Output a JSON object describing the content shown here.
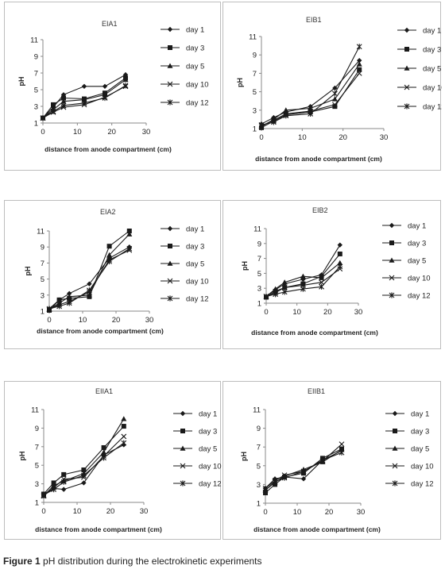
{
  "legend_labels": [
    "day 1",
    "day 3",
    "day 5",
    "day 10",
    "day 12"
  ],
  "chart_data": [
    {
      "type": "line",
      "title": "EIA1",
      "ylabel": "pH",
      "xlabel": "distance from  anode compartment (cm)",
      "xlim": [
        0,
        30
      ],
      "ylim": [
        1,
        11
      ],
      "xticks": [
        0,
        10,
        20,
        30
      ],
      "yticks": [
        1,
        3,
        5,
        7,
        9,
        11
      ],
      "x": [
        0,
        3,
        6,
        12,
        18,
        24
      ],
      "series": [
        {
          "name": "day 1",
          "values": [
            1.6,
            2.9,
            4.4,
            5.4,
            5.4,
            6.8
          ]
        },
        {
          "name": "day 3",
          "values": [
            1.6,
            3.2,
            4.0,
            3.9,
            4.6,
            6.4
          ]
        },
        {
          "name": "day 5",
          "values": [
            1.6,
            2.6,
            3.6,
            3.8,
            4.4,
            6.2
          ]
        },
        {
          "name": "day 10",
          "values": [
            1.6,
            2.3,
            2.9,
            3.2,
            4.1,
            5.4
          ]
        },
        {
          "name": "day 12",
          "values": [
            1.6,
            2.4,
            3.1,
            3.4,
            4.0,
            5.5
          ]
        }
      ]
    },
    {
      "type": "line",
      "title": "EIB1",
      "ylabel": "pH",
      "xlabel": "distance from  anode compartment (cm)",
      "xlim": [
        0,
        30
      ],
      "ylim": [
        1,
        11
      ],
      "xticks": [
        0,
        10,
        20,
        30
      ],
      "yticks": [
        1,
        3,
        5,
        7,
        9,
        11
      ],
      "x": [
        0,
        3,
        6,
        12,
        18,
        24
      ],
      "series": [
        {
          "name": "day 1",
          "values": [
            1.5,
            2.2,
            2.8,
            3.4,
            5.4,
            8.4
          ]
        },
        {
          "name": "day 3",
          "values": [
            1.1,
            1.8,
            2.5,
            2.8,
            3.4,
            7.4
          ]
        },
        {
          "name": "day 5",
          "values": [
            1.2,
            2.0,
            3.0,
            3.2,
            4.2,
            8.0
          ]
        },
        {
          "name": "day 10",
          "values": [
            1.3,
            1.9,
            2.6,
            2.9,
            3.6,
            7.0
          ]
        },
        {
          "name": "day 12",
          "values": [
            1.4,
            1.7,
            2.4,
            2.6,
            4.8,
            9.9
          ]
        }
      ]
    },
    {
      "type": "line",
      "title": "EIA2",
      "ylabel": "pH",
      "xlabel": "distance from  anode compartment (cm)",
      "xlim": [
        0,
        30
      ],
      "ylim": [
        1,
        11
      ],
      "xticks": [
        0,
        10,
        20,
        30
      ],
      "yticks": [
        1,
        3,
        5,
        7,
        9,
        11
      ],
      "x": [
        0,
        3,
        6,
        12,
        18,
        24
      ],
      "series": [
        {
          "name": "day 1",
          "values": [
            1.3,
            2.4,
            3.2,
            4.4,
            7.6,
            9.0
          ]
        },
        {
          "name": "day 3",
          "values": [
            1.1,
            2.4,
            2.6,
            2.8,
            9.1,
            11.0
          ]
        },
        {
          "name": "day 5",
          "values": [
            1.2,
            2.0,
            2.8,
            3.0,
            8.0,
            10.6
          ]
        },
        {
          "name": "day 10",
          "values": [
            1.2,
            1.8,
            2.2,
            3.4,
            7.4,
            8.6
          ]
        },
        {
          "name": "day 12",
          "values": [
            1.3,
            1.6,
            2.0,
            3.6,
            7.2,
            8.8
          ]
        }
      ]
    },
    {
      "type": "line",
      "title": "EIB2",
      "ylabel": "pH",
      "xlabel": "distance from  anode compartment (cm)",
      "xlim": [
        0,
        30
      ],
      "ylim": [
        1,
        11
      ],
      "xticks": [
        0,
        10,
        20,
        30
      ],
      "yticks": [
        1,
        3,
        5,
        7,
        9,
        11
      ],
      "x": [
        0,
        3,
        6,
        12,
        18,
        24
      ],
      "series": [
        {
          "name": "day 1",
          "values": [
            1.9,
            2.8,
            3.6,
            4.2,
            4.8,
            8.8
          ]
        },
        {
          "name": "day 3",
          "values": [
            1.8,
            2.6,
            3.1,
            3.6,
            4.6,
            7.6
          ]
        },
        {
          "name": "day 5",
          "values": [
            1.9,
            2.9,
            3.8,
            4.6,
            4.4,
            6.4
          ]
        },
        {
          "name": "day 10",
          "values": [
            1.9,
            2.4,
            3.1,
            3.4,
            3.8,
            5.6
          ]
        },
        {
          "name": "day 12",
          "values": [
            1.9,
            2.2,
            2.5,
            2.9,
            3.2,
            5.9
          ]
        }
      ]
    },
    {
      "type": "line",
      "title": "EIIA1",
      "ylabel": "pH",
      "xlabel": "distance from  anode compartment (cm)",
      "xlim": [
        0,
        30
      ],
      "ylim": [
        1,
        11
      ],
      "xticks": [
        0,
        10,
        20,
        30
      ],
      "yticks": [
        1,
        3,
        5,
        7,
        9,
        11
      ],
      "x": [
        0,
        3,
        6,
        12,
        18,
        24
      ],
      "series": [
        {
          "name": "day 1",
          "values": [
            1.9,
            2.5,
            2.4,
            3.1,
            6.1,
            7.2
          ]
        },
        {
          "name": "day 3",
          "values": [
            1.9,
            3.1,
            4.0,
            4.5,
            6.9,
            9.2
          ]
        },
        {
          "name": "day 5",
          "values": [
            1.7,
            2.8,
            3.3,
            4.1,
            6.4,
            10.0
          ]
        },
        {
          "name": "day 10",
          "values": [
            1.7,
            2.6,
            3.5,
            3.7,
            6.0,
            8.1
          ]
        },
        {
          "name": "day 12",
          "values": [
            1.8,
            2.4,
            3.2,
            3.9,
            5.8,
            7.4
          ]
        }
      ]
    },
    {
      "type": "line",
      "title": "EIIB1",
      "ylabel": "pH",
      "xlabel": "distance from  anode compartment (cm)",
      "xlim": [
        0,
        30
      ],
      "ylim": [
        1,
        11
      ],
      "xticks": [
        0,
        10,
        20,
        30
      ],
      "yticks": [
        1,
        3,
        5,
        7,
        9,
        11
      ],
      "x": [
        0,
        3,
        6,
        12,
        18,
        24
      ],
      "series": [
        {
          "name": "day 1",
          "values": [
            2.6,
            3.6,
            3.8,
            3.6,
            5.6,
            6.6
          ]
        },
        {
          "name": "day 3",
          "values": [
            2.1,
            3.0,
            3.8,
            4.2,
            5.8,
            6.8
          ]
        },
        {
          "name": "day 5",
          "values": [
            2.4,
            3.2,
            3.9,
            4.6,
            5.4,
            6.7
          ]
        },
        {
          "name": "day 10",
          "values": [
            2.6,
            3.4,
            4.0,
            4.4,
            5.5,
            7.3
          ]
        },
        {
          "name": "day 12",
          "values": [
            2.4,
            3.3,
            3.7,
            4.4,
            5.6,
            6.4
          ]
        }
      ]
    }
  ],
  "caption": {
    "label": "Figure 1",
    "text": " pH distribution during the electrokinetic experiments"
  }
}
